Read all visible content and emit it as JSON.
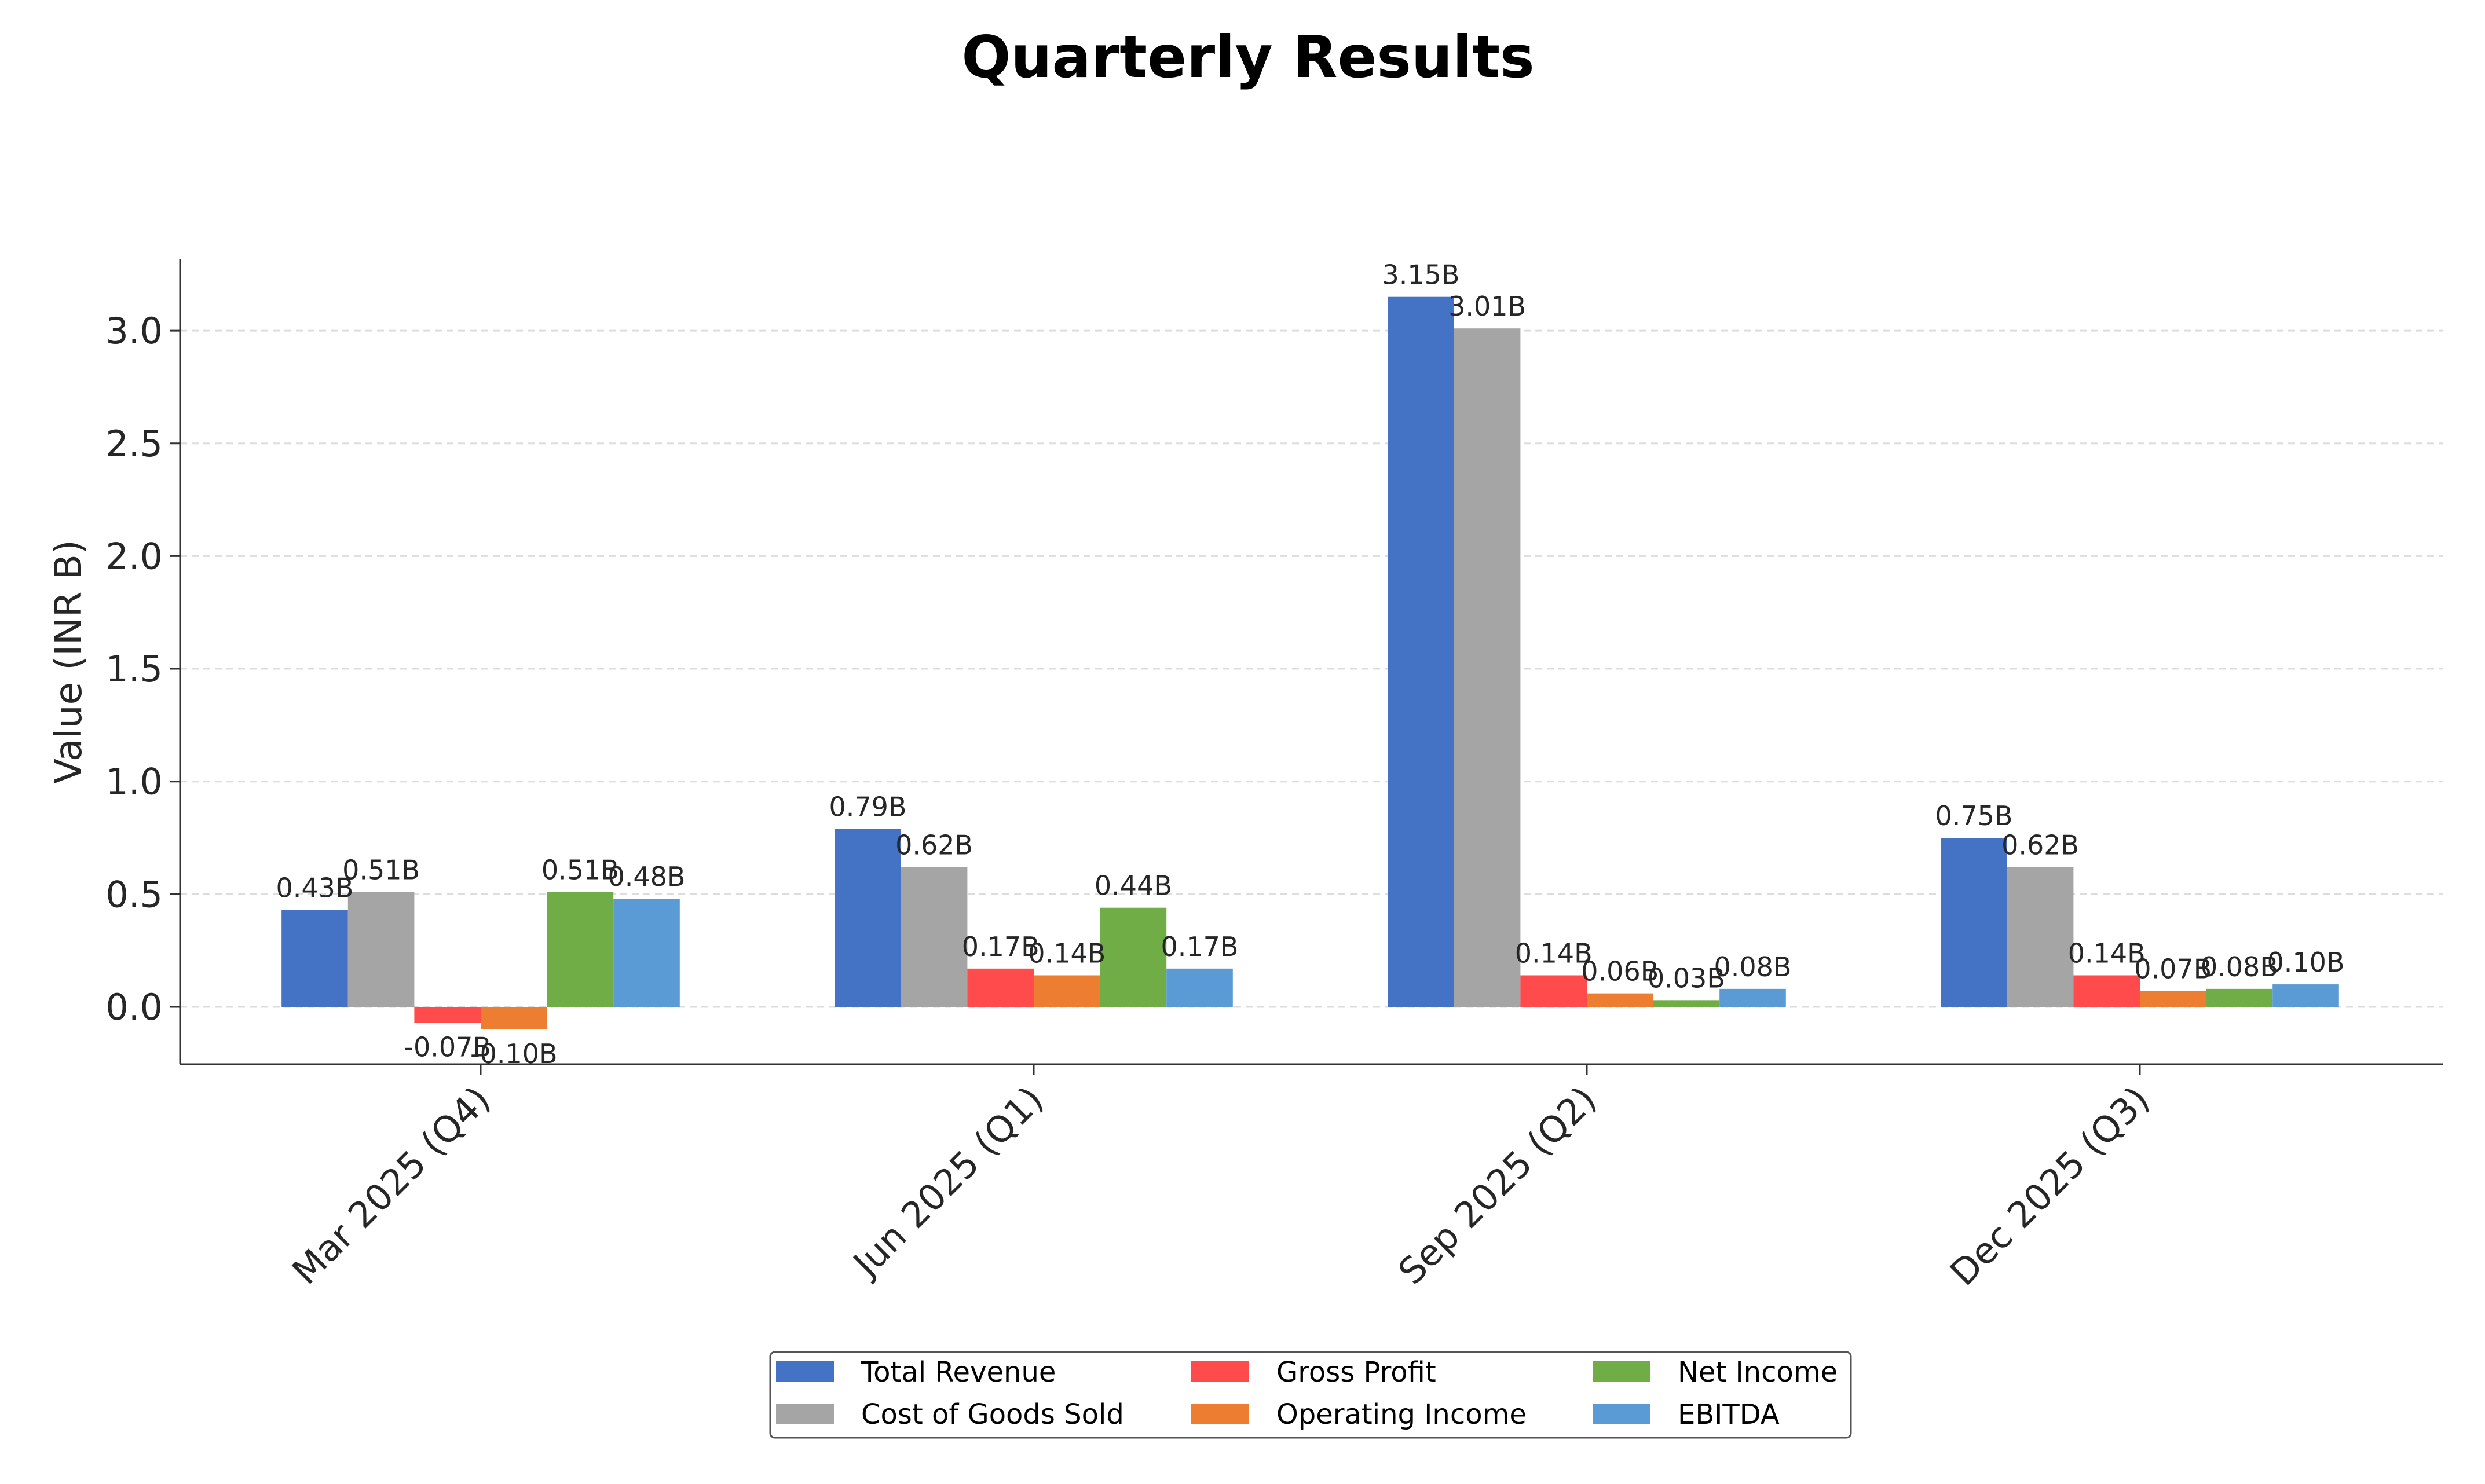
{
  "chart_data": {
    "type": "bar",
    "title": "Quarterly Results",
    "xlabel": "",
    "ylabel": "Value (INR B)",
    "categories": [
      "Mar 2025 (Q4)",
      "Jun 2025 (Q1)",
      "Sep 2025 (Q2)",
      "Dec 2025 (Q3)"
    ],
    "yticks": [
      "0.0",
      "0.5",
      "1.0",
      "1.5",
      "2.0",
      "2.5",
      "3.0"
    ],
    "ylim": [
      -0.26,
      3.32
    ],
    "grid": true,
    "legend_position": "bottom-center",
    "series": [
      {
        "name": "Total Revenue",
        "color": "#4472c4",
        "values": [
          0.43,
          0.79,
          3.15,
          0.75
        ],
        "labels": [
          "0.43B",
          "0.79B",
          "3.15B",
          "0.75B"
        ]
      },
      {
        "name": "Cost of Goods Sold",
        "color": "#a5a5a5",
        "values": [
          0.51,
          0.62,
          3.01,
          0.62
        ],
        "labels": [
          "0.51B",
          "0.62B",
          "3.01B",
          "0.62B"
        ]
      },
      {
        "name": "Gross Profit",
        "color": "#ff4b4b",
        "values": [
          -0.07,
          0.17,
          0.14,
          0.14
        ],
        "labels": [
          "-0.07B",
          "0.17B",
          "0.14B",
          "0.14B"
        ]
      },
      {
        "name": "Operating Income",
        "color": "#ed7d31",
        "values": [
          -0.1,
          0.14,
          0.06,
          0.07
        ],
        "labels": [
          "-0.10B",
          "0.14B",
          "0.06B",
          "0.07B"
        ]
      },
      {
        "name": "Net Income",
        "color": "#70ad47",
        "values": [
          0.51,
          0.44,
          0.03,
          0.08
        ],
        "labels": [
          "0.51B",
          "0.44B",
          "0.03B",
          "0.08B"
        ]
      },
      {
        "name": "EBITDA",
        "color": "#5b9bd5",
        "values": [
          0.48,
          0.17,
          0.08,
          0.1
        ],
        "labels": [
          "0.48B",
          "0.17B",
          "0.08B",
          "0.10B"
        ]
      }
    ]
  }
}
